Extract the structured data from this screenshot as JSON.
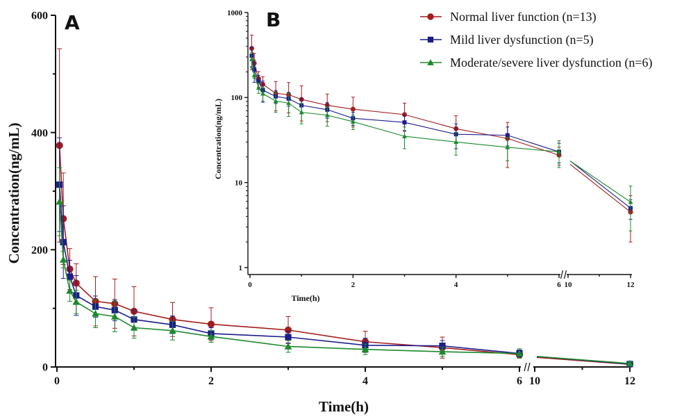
{
  "chart_data": [
    {
      "type": "line",
      "panel_label": "A",
      "xlabel": "Time(h)",
      "ylabel": "Concentration(ng/mL)",
      "yscale": "linear",
      "ylim": [
        0,
        600
      ],
      "x_segments": [
        {
          "range": [
            0,
            6
          ]
        },
        {
          "range": [
            10,
            12
          ]
        }
      ],
      "x_ticks": [
        0,
        2,
        4,
        6,
        10,
        12
      ],
      "y_ticks": [
        0,
        200,
        400,
        600
      ],
      "x": [
        0.033,
        0.083,
        0.167,
        0.25,
        0.5,
        0.75,
        1,
        1.5,
        2,
        3,
        4,
        5,
        6,
        12
      ],
      "series": [
        {
          "name": "Normal liver function (n=13)",
          "color": "#a31c1c",
          "marker": "circle",
          "values": [
            378,
            253,
            167,
            143,
            112,
            108,
            95,
            81,
            73,
            63,
            43,
            33,
            21,
            4.5
          ],
          "errors": [
            165,
            78,
            35,
            33,
            42,
            42,
            42,
            29,
            28,
            23,
            18,
            18,
            5,
            2.5
          ]
        },
        {
          "name": "Mild liver dysfunction (n=5)",
          "color": "#1c1c8c",
          "marker": "square",
          "values": [
            311,
            213,
            154,
            122,
            103,
            97,
            81,
            72,
            57,
            51,
            37,
            36,
            23,
            5
          ],
          "errors": [
            80,
            62,
            28,
            34,
            18,
            18,
            16,
            15,
            10,
            10,
            12,
            9,
            6,
            1.3
          ]
        },
        {
          "name": "Moderate/severe liver dysfunction (n=6)",
          "color": "#1c8a2c",
          "marker": "triangle",
          "values": [
            282,
            183,
            130,
            111,
            91,
            86,
            67,
            62,
            52,
            35,
            30,
            26,
            23,
            5.9
          ],
          "errors": [
            58,
            14,
            18,
            20,
            24,
            26,
            18,
            16,
            10,
            10,
            9,
            8,
            8,
            3.2
          ]
        }
      ]
    },
    {
      "type": "line",
      "panel_label": "B",
      "xlabel": "Time(h)",
      "ylabel": "Concentration(ng/mL)",
      "yscale": "log",
      "ylim": [
        1,
        1000
      ],
      "x_segments": [
        {
          "range": [
            0,
            6
          ]
        },
        {
          "range": [
            10,
            12
          ]
        }
      ],
      "x_ticks": [
        0,
        2,
        4,
        6,
        10,
        12
      ],
      "y_ticks": [
        1,
        10,
        100,
        1000
      ],
      "legend": "top-right",
      "x": [
        0.033,
        0.083,
        0.167,
        0.25,
        0.5,
        0.75,
        1,
        1.5,
        2,
        3,
        4,
        5,
        6,
        12
      ],
      "series": "same as panel A"
    }
  ]
}
